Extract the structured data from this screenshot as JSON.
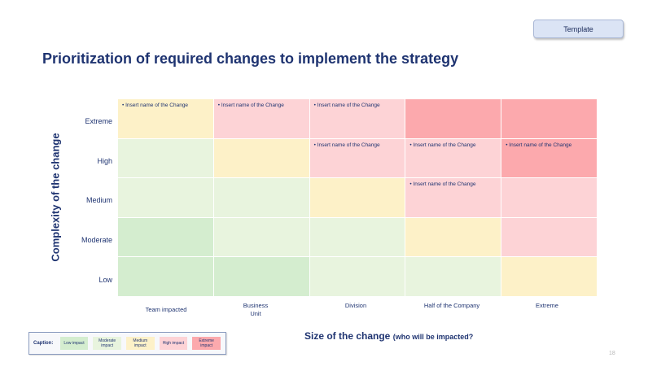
{
  "header": {
    "template_label": "Template"
  },
  "title": "Prioritization of required changes to implement the strategy",
  "y_axis": {
    "title": "Complexity of the change",
    "levels": [
      "Extreme",
      "High",
      "Medium",
      "Moderate",
      "Low"
    ]
  },
  "x_axis": {
    "title": "Size of the change",
    "subtitle": "(who will be impacted?",
    "levels": [
      "Team impacted",
      "Business\nUnit",
      "Division",
      "Half of the Company",
      "Extreme"
    ]
  },
  "matrix": [
    [
      {
        "impact": "medium",
        "text": "• Insert name of the Change"
      },
      {
        "impact": "high",
        "text": "• Insert name of the Change"
      },
      {
        "impact": "high",
        "text": "• Insert name of the Change"
      },
      {
        "impact": "extreme",
        "text": ""
      },
      {
        "impact": "extreme",
        "text": ""
      }
    ],
    [
      {
        "impact": "moderate",
        "text": ""
      },
      {
        "impact": "medium",
        "text": ""
      },
      {
        "impact": "high",
        "text": "• Insert name of the Change"
      },
      {
        "impact": "high",
        "text": "• Insert name of the Change"
      },
      {
        "impact": "extreme",
        "text": "• Insert name of the Change"
      }
    ],
    [
      {
        "impact": "moderate",
        "text": ""
      },
      {
        "impact": "moderate",
        "text": ""
      },
      {
        "impact": "medium",
        "text": ""
      },
      {
        "impact": "high",
        "text": "• Insert name of the Change"
      },
      {
        "impact": "high",
        "text": ""
      }
    ],
    [
      {
        "impact": "low",
        "text": ""
      },
      {
        "impact": "moderate",
        "text": ""
      },
      {
        "impact": "moderate",
        "text": ""
      },
      {
        "impact": "medium",
        "text": ""
      },
      {
        "impact": "high",
        "text": ""
      }
    ],
    [
      {
        "impact": "low",
        "text": ""
      },
      {
        "impact": "low",
        "text": ""
      },
      {
        "impact": "moderate",
        "text": ""
      },
      {
        "impact": "moderate",
        "text": ""
      },
      {
        "impact": "medium",
        "text": ""
      }
    ]
  ],
  "caption": {
    "label": "Caption:",
    "items": [
      {
        "key": "low",
        "label": "Low impact",
        "color": "#d4edcf"
      },
      {
        "key": "moderate",
        "label": "Moderate impact",
        "color": "#e8f4de"
      },
      {
        "key": "medium",
        "label": "Medium impact",
        "color": "#fdf1c8"
      },
      {
        "key": "high",
        "label": "High impact",
        "color": "#fdd3d6"
      },
      {
        "key": "extreme",
        "label": "Extreme impact",
        "color": "#fca9ad"
      }
    ]
  },
  "page_number": "18"
}
